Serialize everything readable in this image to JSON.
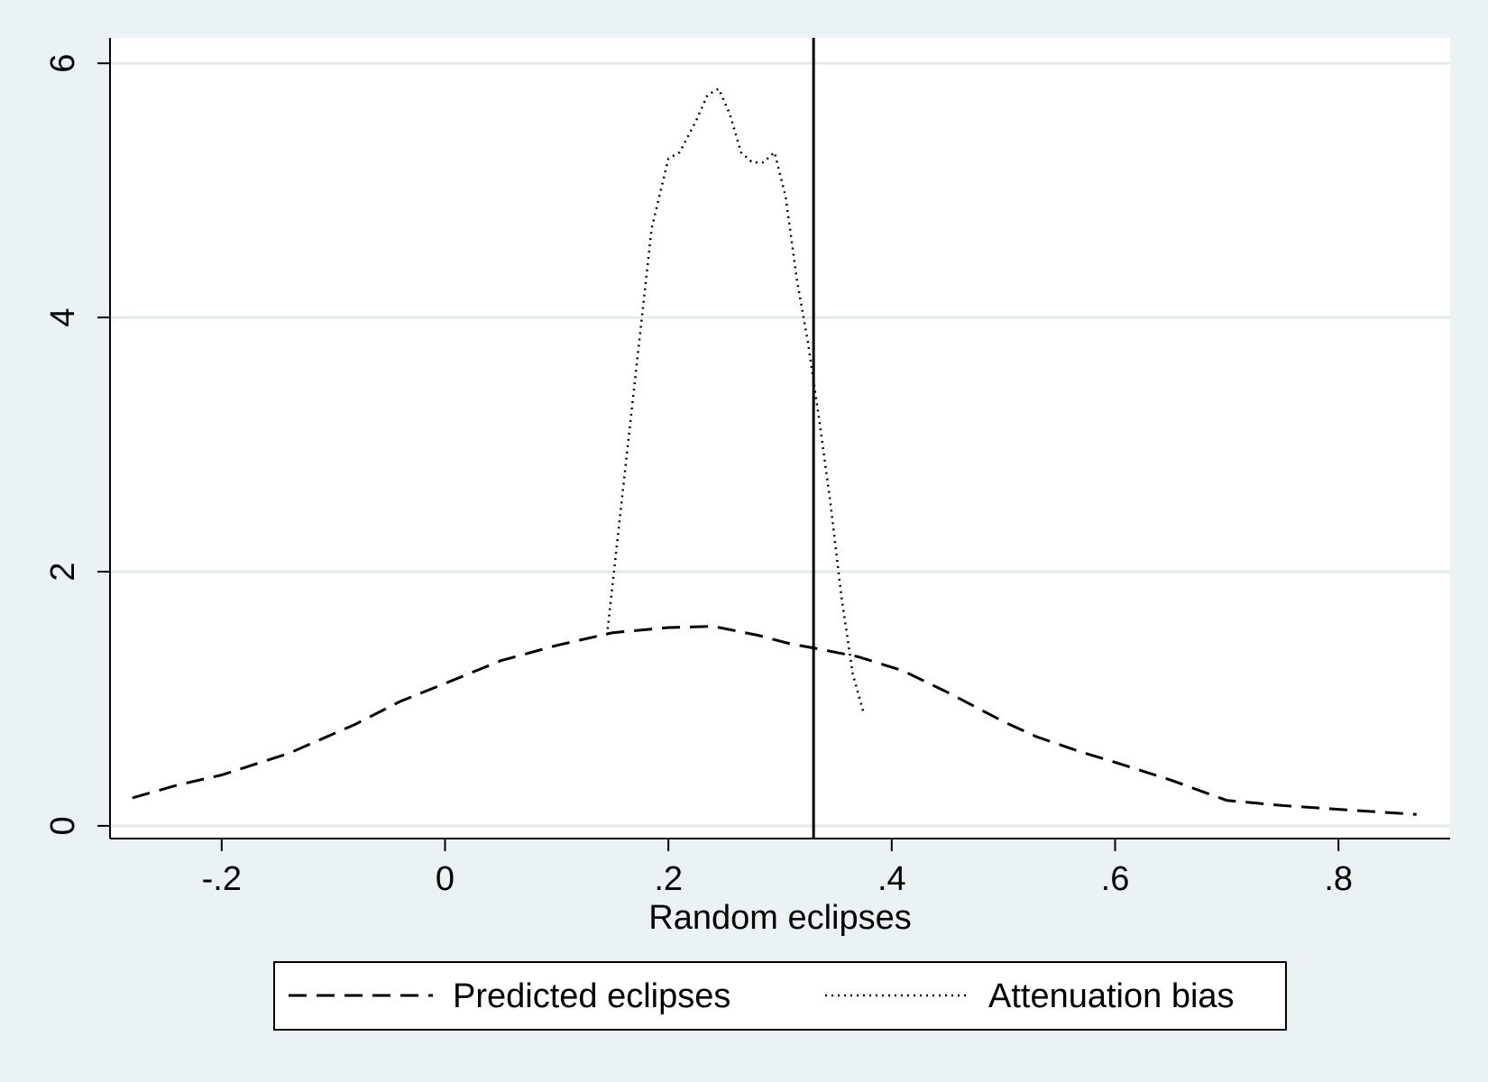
{
  "chart_data": {
    "type": "line",
    "xlabel": "Random eclipses",
    "ylabel": "",
    "xlim": [
      -0.3,
      0.9
    ],
    "ylim": [
      -0.1,
      6.2
    ],
    "x_ticks": [
      -0.2,
      0,
      0.2,
      0.4,
      0.6,
      0.8
    ],
    "x_tick_labels": [
      "-.2",
      "0",
      ".2",
      ".4",
      ".6",
      ".8"
    ],
    "y_ticks": [
      0,
      2,
      4,
      6
    ],
    "y_tick_labels": [
      "0",
      "2",
      "4",
      "6"
    ],
    "grid": true,
    "legend_position": "bottom",
    "vertical_line_x": 0.33,
    "series": [
      {
        "name": "Predicted eclipses",
        "style": "dashed",
        "x": [
          -0.28,
          -0.24,
          -0.2,
          -0.14,
          -0.08,
          -0.04,
          0.0,
          0.05,
          0.1,
          0.15,
          0.2,
          0.24,
          0.28,
          0.31,
          0.33,
          0.37,
          0.41,
          0.45,
          0.5,
          0.53,
          0.57,
          0.6,
          0.65,
          0.7,
          0.75,
          0.8,
          0.87
        ],
        "y": [
          0.22,
          0.32,
          0.4,
          0.57,
          0.8,
          0.98,
          1.12,
          1.3,
          1.42,
          1.52,
          1.56,
          1.57,
          1.5,
          1.43,
          1.4,
          1.33,
          1.22,
          1.05,
          0.82,
          0.7,
          0.58,
          0.5,
          0.36,
          0.2,
          0.16,
          0.13,
          0.09
        ]
      },
      {
        "name": "Attenuation bias",
        "style": "dotted",
        "x": [
          0.145,
          0.165,
          0.185,
          0.2,
          0.21,
          0.225,
          0.235,
          0.245,
          0.255,
          0.265,
          0.275,
          0.285,
          0.295,
          0.305,
          0.315,
          0.325,
          0.335,
          0.345,
          0.355,
          0.365,
          0.375
        ],
        "y": [
          1.5,
          3.1,
          4.7,
          5.25,
          5.3,
          5.55,
          5.75,
          5.8,
          5.6,
          5.3,
          5.22,
          5.22,
          5.3,
          4.95,
          4.3,
          3.8,
          3.2,
          2.55,
          1.8,
          1.2,
          0.88
        ]
      }
    ]
  }
}
